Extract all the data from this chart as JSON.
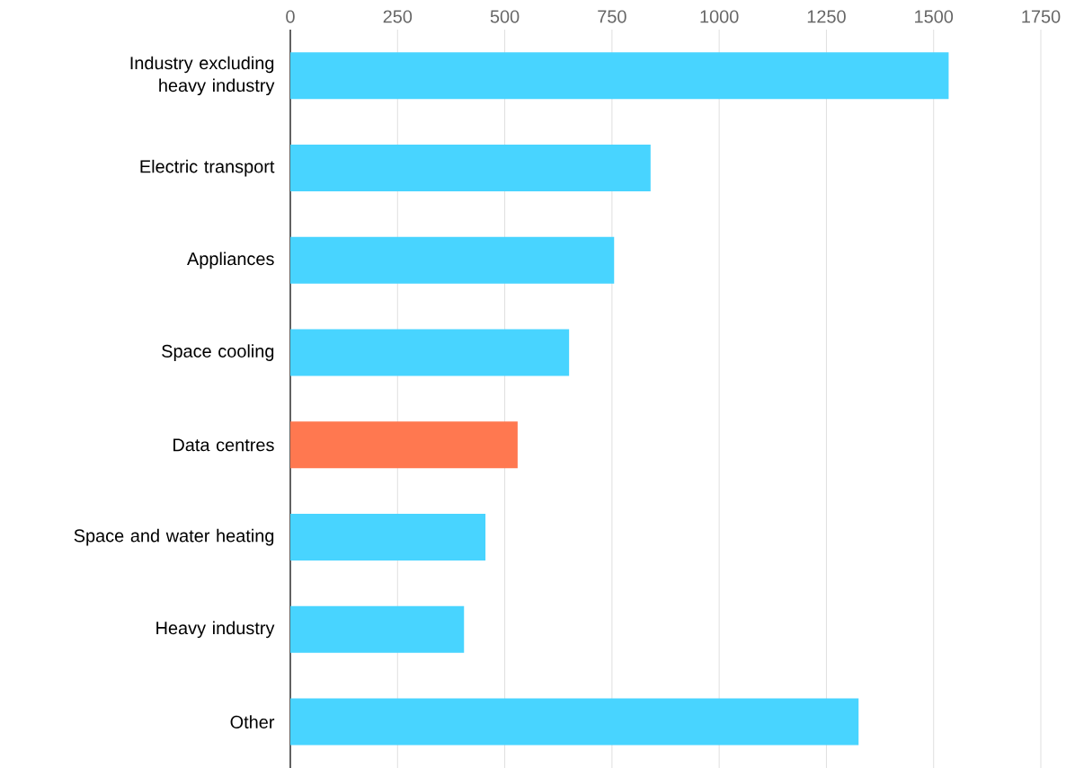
{
  "chart_data": {
    "type": "bar",
    "orientation": "horizontal",
    "categories": [
      "Industry excluding heavy industry",
      "Electric transport",
      "Appliances",
      "Space cooling",
      "Data centres",
      "Space and water heating",
      "Heavy industry",
      "Other"
    ],
    "values": [
      1535,
      840,
      755,
      650,
      530,
      455,
      405,
      1325
    ],
    "colors": [
      "#48d4ff",
      "#48d4ff",
      "#48d4ff",
      "#48d4ff",
      "#ff7850",
      "#48d4ff",
      "#48d4ff",
      "#48d4ff"
    ],
    "xlim": [
      0,
      1750
    ],
    "xticks": [
      0,
      250,
      500,
      750,
      1000,
      1250,
      1500,
      1750
    ],
    "grid": "x"
  }
}
